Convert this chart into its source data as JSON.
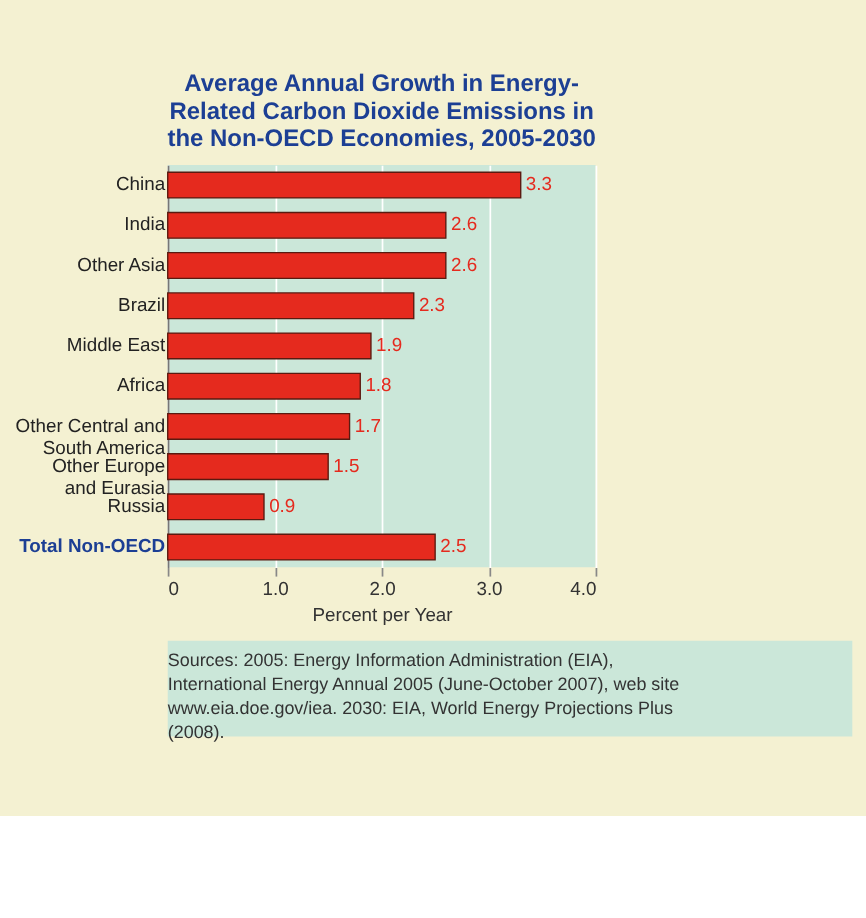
{
  "chart_data": {
    "type": "bar",
    "orientation": "horizontal",
    "title": "Average Annual Growth in Energy-\nRelated Carbon Dioxide Emissions in\nthe Non-OECD Economies, 2005-2030",
    "categories": [
      "China",
      "India",
      "Other Asia",
      "Brazil",
      "Middle East",
      "Africa",
      "Other Central and\nSouth America",
      "Other Europe\nand Eurasia",
      "Russia",
      "Total Non-OECD"
    ],
    "values": [
      3.3,
      2.6,
      2.6,
      2.3,
      1.9,
      1.8,
      1.7,
      1.5,
      0.9,
      2.5
    ],
    "color": "#e52a1e",
    "xlabel": "Percent per Year",
    "xlim": [
      0,
      4
    ],
    "xticks": [
      0,
      {
        "value": 1,
        "label": "1.0"
      },
      {
        "value": 2,
        "label": "2.0"
      },
      {
        "value": 3,
        "label": "3.0"
      },
      {
        "value": 4,
        "label": "4.0"
      }
    ],
    "grid": "x",
    "data_labels": true,
    "legend": false,
    "annotations": [
      "Sources: 2005: Energy Information Administration (EIA), International Energy Annual 2005 (June-October 2007), web site www.eia.doe.gov/iea. 2030: EIA, World Energy Projections Plus (2008)."
    ]
  }
}
